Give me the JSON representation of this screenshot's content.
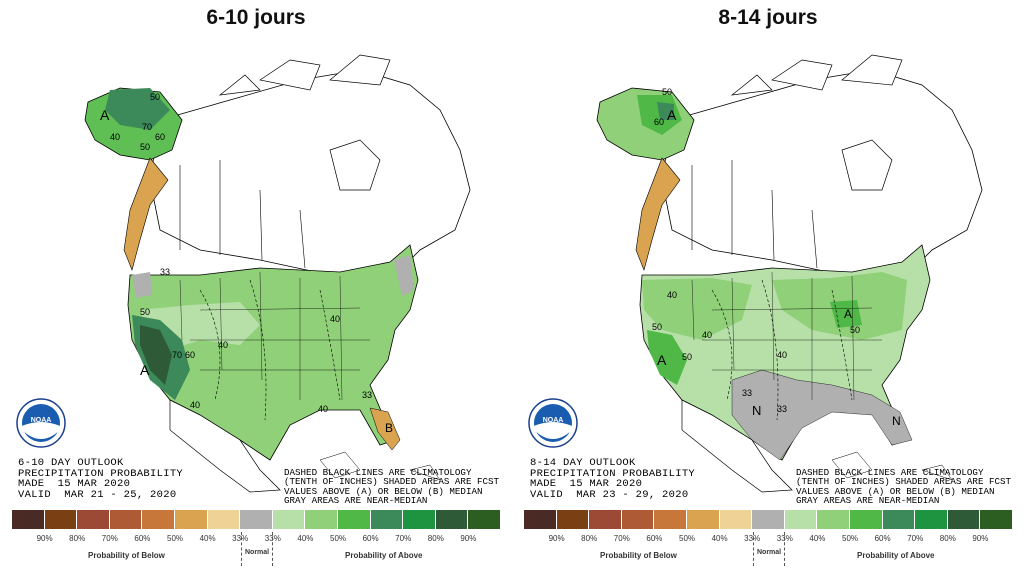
{
  "panels": [
    {
      "title": "6-10 jours",
      "outlook": [
        "6-10 DAY OUTLOOK",
        "PRECIPITATION PROBABILITY",
        "MADE  15 MAR 2020",
        "VALID  MAR 21 - 25, 2020"
      ],
      "notes": [
        "DASHED BLACK LINES ARE CLIMATOLOGY",
        "(TENTH OF INCHES) SHADED AREAS ARE FCST",
        "VALUES ABOVE (A) OR BELOW (B) MEDIAN",
        "GRAY AREAS ARE NEAR-MEDIAN"
      ],
      "map_labels": [
        "A",
        "50",
        "60",
        "70",
        "40",
        "50",
        "33",
        "A",
        "50",
        "60",
        "70",
        "40",
        "40",
        "40",
        "B",
        "40",
        "33"
      ]
    },
    {
      "title": "8-14 jours",
      "outlook": [
        "8-14 DAY OUTLOOK",
        "PRECIPITATION PROBABILITY",
        "MADE  15 MAR 2020",
        "VALID  MAR 23 - 29, 2020"
      ],
      "notes": [
        "DASHED BLACK LINES ARE CLIMATOLOGY",
        "(TENTH OF INCHES) SHADED AREAS ARE FCST",
        "VALUES ABOVE (A) OR BELOW (B) MEDIAN",
        "GRAY AREAS ARE NEAR-MEDIAN"
      ],
      "map_labels": [
        "50",
        "A",
        "60",
        "40",
        "A",
        "50",
        "50",
        "40",
        "33",
        "N",
        "33",
        "N",
        "A",
        "40",
        "50"
      ]
    }
  ],
  "legend": {
    "colors": [
      "#4a2a25",
      "#7a3f12",
      "#9c4a36",
      "#ae5a34",
      "#c7773a",
      "#d9a34f",
      "#efd396",
      "#b0b0b0",
      "#b7e0a8",
      "#8fd078",
      "#4fb847",
      "#3c8a5a",
      "#1e9440",
      "#2e5a38",
      "#2c5e22"
    ],
    "labels": [
      "90%",
      "80%",
      "70%",
      "60%",
      "50%",
      "40%",
      "33%",
      "33%",
      "40%",
      "50%",
      "60%",
      "70%",
      "80%",
      "90%"
    ],
    "below_label": "Probability of Below",
    "normal_label": "Normal",
    "above_label": "Probability of Above"
  },
  "logo_text": "NOAA"
}
